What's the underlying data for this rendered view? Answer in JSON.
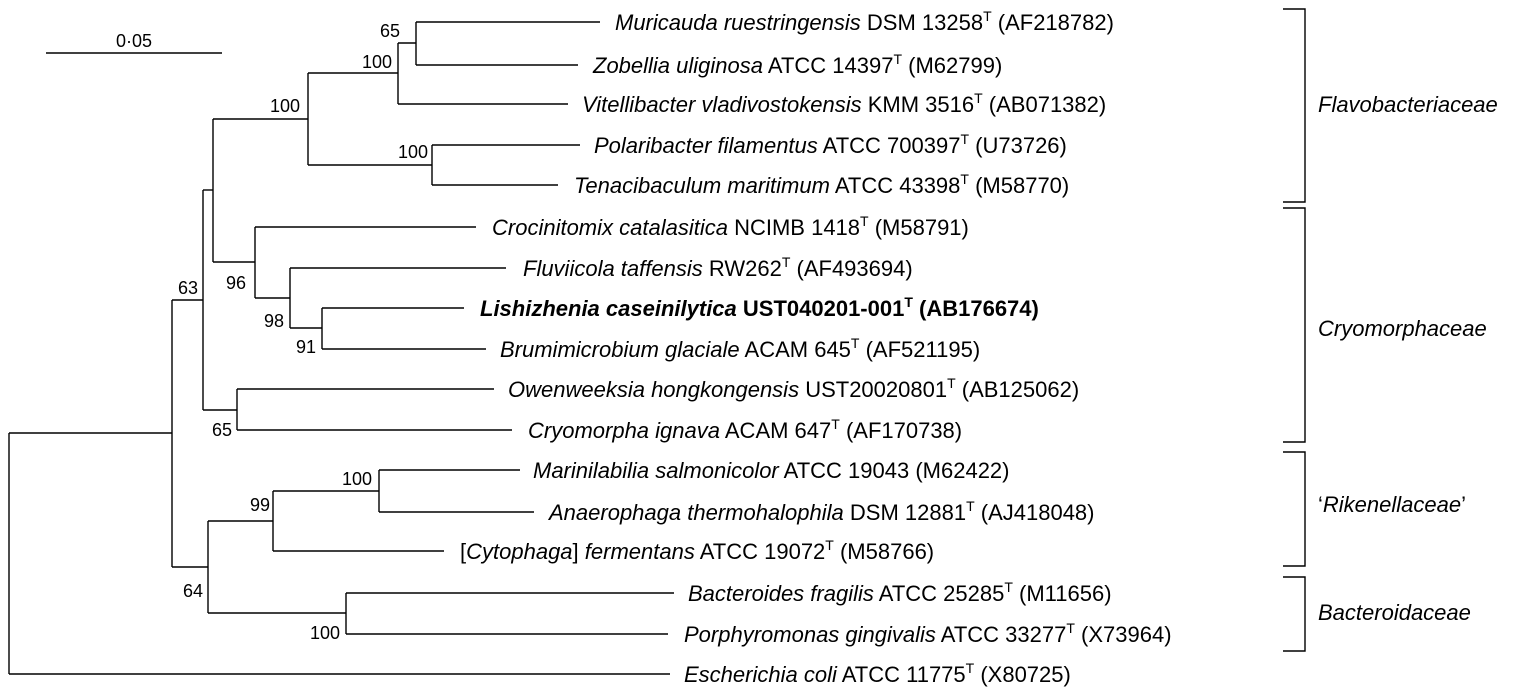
{
  "scale_bar": {
    "label": "0·05"
  },
  "bootstrap": [
    "65",
    "100",
    "100",
    "100",
    "96",
    "98",
    "91",
    "63",
    "65",
    "99",
    "100",
    "64",
    "100"
  ],
  "taxa": [
    {
      "genus": "Muricauda ruestringensis",
      "strain": " DSM 13258",
      "acc": " (AF218782)",
      "bold": false
    },
    {
      "genus": "Zobellia uliginosa",
      "strain": " ATCC 14397",
      "acc": " (M62799)",
      "bold": false
    },
    {
      "genus": "Vitellibacter vladivostokensis",
      "strain": " KMM 3516",
      "acc": " (AB071382)",
      "bold": false
    },
    {
      "genus": "Polaribacter filamentus",
      "strain": " ATCC 700397",
      "acc": " (U73726)",
      "bold": false
    },
    {
      "genus": "Tenacibaculum maritimum",
      "strain": " ATCC 43398",
      "acc": " (M58770)",
      "bold": false
    },
    {
      "genus": "Crocinitomix catalasitica",
      "strain": " NCIMB 1418",
      "acc": " (M58791)",
      "bold": false
    },
    {
      "genus": "Fluviicola taffensis",
      "strain": " RW262",
      "acc": " (AF493694)",
      "bold": false
    },
    {
      "genus": "Lishizhenia caseinilytica",
      "strain": " UST040201-001",
      "acc": " (AB176674)",
      "bold": true
    },
    {
      "genus": "Brumimicrobium glaciale",
      "strain": " ACAM 645",
      "acc": " (AF521195)",
      "bold": false
    },
    {
      "genus": "Owenweeksia hongkongensis",
      "strain": " UST20020801",
      "acc": " (AB125062)",
      "bold": false
    },
    {
      "genus": "Cryomorpha ignava",
      "strain": " ACAM 647",
      "acc": " (AF170738)",
      "bold": false
    },
    {
      "genus": "Marinilabilia salmonicolor",
      "strain": " ATCC 19043",
      "acc": " (M62422)",
      "bold": false,
      "notype": true
    },
    {
      "genus": "Anaerophaga thermohalophila",
      "strain": " DSM 12881",
      "acc": " (AJ418048)",
      "bold": false
    },
    {
      "genus": "Cytophaga",
      "pre": "[",
      "post": "] ",
      "species": "fermentans",
      "strain": " ATCC 19072",
      "acc": " (M58766)",
      "bold": false
    },
    {
      "genus": "Bacteroides fragilis",
      "strain": " ATCC 25285",
      "acc": " (M11656)",
      "bold": false
    },
    {
      "genus": "Porphyromonas gingivalis",
      "strain": " ATCC 33277",
      "acc": " (X73964)",
      "bold": false
    },
    {
      "genus": "Escherichia coli",
      "strain": " ATCC 11775",
      "acc": " (X80725)",
      "bold": false
    }
  ],
  "type_mark": "T",
  "families": [
    {
      "name": "Flavobacteriaceae"
    },
    {
      "name": "Cryomorphaceae"
    },
    {
      "name": "Rikenellaceae",
      "quote_open": "‘",
      "quote_close": "’"
    },
    {
      "name": "Bacteroidaceae"
    }
  ]
}
